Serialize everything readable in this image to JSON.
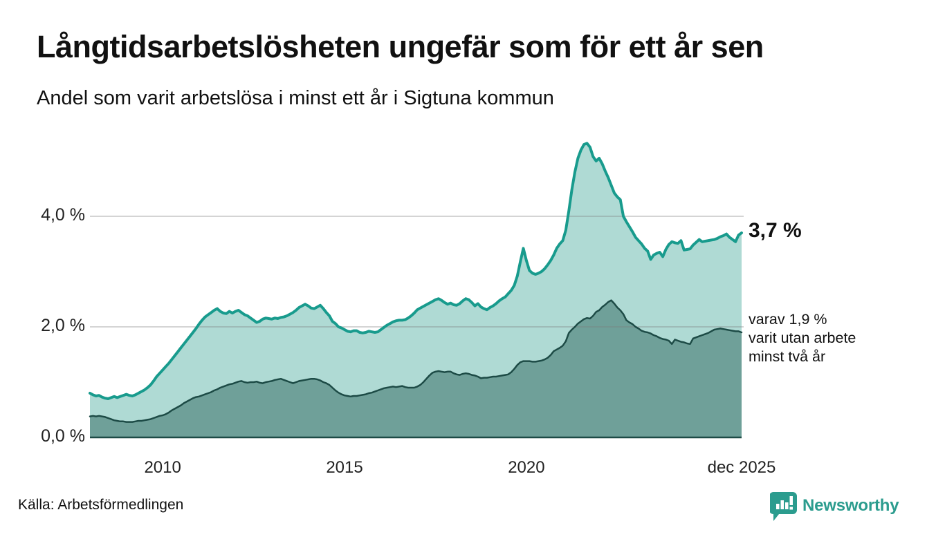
{
  "header": {
    "title": "Långtidsarbetslösheten ungefär som för ett år sen",
    "subtitle": "Andel som varit arbetslösa i minst ett år i Sigtuna kommun"
  },
  "chart_data": {
    "type": "area",
    "title": "Långtidsarbetslösheten ungefär som för ett år sen",
    "subtitle": "Andel som varit arbetslösa i minst ett år i Sigtuna kommun",
    "x_unit": "month",
    "x_range": [
      "2008-01",
      "2025-12"
    ],
    "ylim": [
      0,
      5.5
    ],
    "grid": "horizontal",
    "x_ticks": [
      {
        "label": "2010",
        "month_index": 24
      },
      {
        "label": "2015",
        "month_index": 84
      },
      {
        "label": "2020",
        "month_index": 144
      },
      {
        "label": "dec 2025",
        "month_index": 215
      }
    ],
    "y_ticks": [
      {
        "label": "4,0 %",
        "value": 4.0
      },
      {
        "label": "2,0 %",
        "value": 2.0
      },
      {
        "label": "0,0 %",
        "value": 0.0
      }
    ],
    "series": [
      {
        "id": "minst-ett-ar",
        "name": "Andel arbetslösa minst ett år",
        "color": "#189b8d",
        "fill": "#afdad4",
        "width": 4,
        "values": [
          0.8,
          0.77,
          0.75,
          0.76,
          0.73,
          0.71,
          0.7,
          0.72,
          0.74,
          0.72,
          0.74,
          0.76,
          0.78,
          0.76,
          0.75,
          0.77,
          0.8,
          0.83,
          0.86,
          0.9,
          0.95,
          1.02,
          1.1,
          1.16,
          1.22,
          1.28,
          1.34,
          1.41,
          1.48,
          1.55,
          1.62,
          1.69,
          1.76,
          1.83,
          1.9,
          1.97,
          2.05,
          2.12,
          2.18,
          2.22,
          2.26,
          2.3,
          2.33,
          2.28,
          2.25,
          2.24,
          2.28,
          2.25,
          2.28,
          2.3,
          2.26,
          2.22,
          2.2,
          2.16,
          2.12,
          2.08,
          2.1,
          2.14,
          2.16,
          2.15,
          2.14,
          2.16,
          2.15,
          2.17,
          2.18,
          2.2,
          2.23,
          2.26,
          2.3,
          2.35,
          2.38,
          2.41,
          2.38,
          2.34,
          2.33,
          2.36,
          2.39,
          2.33,
          2.26,
          2.2,
          2.1,
          2.06,
          2.0,
          1.98,
          1.95,
          1.92,
          1.91,
          1.93,
          1.93,
          1.9,
          1.89,
          1.9,
          1.92,
          1.91,
          1.9,
          1.91,
          1.95,
          1.99,
          2.03,
          2.06,
          2.09,
          2.11,
          2.12,
          2.12,
          2.13,
          2.16,
          2.2,
          2.25,
          2.31,
          2.34,
          2.37,
          2.4,
          2.43,
          2.46,
          2.49,
          2.51,
          2.48,
          2.44,
          2.41,
          2.43,
          2.4,
          2.39,
          2.42,
          2.47,
          2.51,
          2.49,
          2.44,
          2.38,
          2.42,
          2.36,
          2.33,
          2.31,
          2.35,
          2.38,
          2.42,
          2.47,
          2.51,
          2.54,
          2.6,
          2.66,
          2.75,
          2.92,
          3.18,
          3.42,
          3.2,
          3.02,
          2.97,
          2.95,
          2.97,
          3.0,
          3.05,
          3.12,
          3.2,
          3.3,
          3.42,
          3.5,
          3.56,
          3.75,
          4.1,
          4.48,
          4.8,
          5.05,
          5.2,
          5.3,
          5.32,
          5.25,
          5.08,
          5.0,
          5.05,
          4.95,
          4.82,
          4.7,
          4.56,
          4.42,
          4.35,
          4.3,
          4.0,
          3.9,
          3.81,
          3.72,
          3.62,
          3.56,
          3.5,
          3.42,
          3.37,
          3.22,
          3.3,
          3.33,
          3.35,
          3.27,
          3.4,
          3.49,
          3.54,
          3.52,
          3.51,
          3.56,
          3.39,
          3.4,
          3.41,
          3.48,
          3.53,
          3.58,
          3.54,
          3.55,
          3.56,
          3.57,
          3.58,
          3.6,
          3.63,
          3.65,
          3.68,
          3.62,
          3.58,
          3.54,
          3.66,
          3.7
        ]
      },
      {
        "id": "minst-tva-ar",
        "name": "Andel utan arbete minst två år",
        "color": "#1d4b46",
        "fill": "#6fa099",
        "width": 2.5,
        "values": [
          0.38,
          0.39,
          0.38,
          0.39,
          0.38,
          0.37,
          0.35,
          0.33,
          0.31,
          0.3,
          0.29,
          0.29,
          0.28,
          0.28,
          0.28,
          0.29,
          0.3,
          0.3,
          0.31,
          0.32,
          0.33,
          0.35,
          0.37,
          0.39,
          0.4,
          0.42,
          0.45,
          0.49,
          0.52,
          0.55,
          0.58,
          0.62,
          0.65,
          0.68,
          0.71,
          0.73,
          0.74,
          0.76,
          0.78,
          0.8,
          0.82,
          0.85,
          0.87,
          0.9,
          0.92,
          0.94,
          0.96,
          0.97,
          0.99,
          1.01,
          1.02,
          1.0,
          0.99,
          1.0,
          1.0,
          1.01,
          0.99,
          0.98,
          1.0,
          1.01,
          1.02,
          1.04,
          1.05,
          1.06,
          1.04,
          1.02,
          1.0,
          0.98,
          1.0,
          1.02,
          1.03,
          1.04,
          1.05,
          1.06,
          1.06,
          1.05,
          1.03,
          1.0,
          0.98,
          0.95,
          0.9,
          0.85,
          0.81,
          0.78,
          0.76,
          0.75,
          0.74,
          0.75,
          0.75,
          0.76,
          0.77,
          0.78,
          0.8,
          0.81,
          0.83,
          0.85,
          0.87,
          0.89,
          0.9,
          0.91,
          0.92,
          0.91,
          0.92,
          0.93,
          0.91,
          0.9,
          0.9,
          0.9,
          0.92,
          0.95,
          1.0,
          1.06,
          1.12,
          1.17,
          1.19,
          1.2,
          1.19,
          1.18,
          1.19,
          1.19,
          1.16,
          1.14,
          1.13,
          1.15,
          1.16,
          1.15,
          1.13,
          1.12,
          1.1,
          1.07,
          1.08,
          1.08,
          1.09,
          1.1,
          1.1,
          1.11,
          1.12,
          1.13,
          1.14,
          1.18,
          1.24,
          1.31,
          1.36,
          1.38,
          1.38,
          1.38,
          1.37,
          1.37,
          1.38,
          1.39,
          1.41,
          1.44,
          1.49,
          1.56,
          1.59,
          1.62,
          1.66,
          1.74,
          1.89,
          1.95,
          2.0,
          2.06,
          2.1,
          2.14,
          2.16,
          2.15,
          2.2,
          2.27,
          2.3,
          2.36,
          2.4,
          2.45,
          2.48,
          2.42,
          2.35,
          2.3,
          2.23,
          2.12,
          2.08,
          2.05,
          2.0,
          1.97,
          1.93,
          1.91,
          1.9,
          1.88,
          1.85,
          1.83,
          1.8,
          1.78,
          1.77,
          1.75,
          1.69,
          1.77,
          1.75,
          1.73,
          1.72,
          1.7,
          1.69,
          1.79,
          1.81,
          1.83,
          1.85,
          1.87,
          1.89,
          1.92,
          1.95,
          1.96,
          1.97,
          1.96,
          1.95,
          1.94,
          1.93,
          1.92,
          1.92,
          1.9
        ]
      }
    ],
    "annotations": {
      "last_value_label": "3,7 %",
      "secondary_line1": "varav 1,9 %",
      "secondary_line2": "varit utan arbete",
      "secondary_line3": "minst två år"
    }
  },
  "footer": {
    "source": "Källa: Arbetsförmedlingen",
    "logo_text": "Newsworthy"
  },
  "colors": {
    "accent_teal": "#189b8d",
    "light_fill": "#afdad4",
    "dark_fill": "#6fa099",
    "dark_line": "#1d4b46",
    "gridline": "#e0e0e0",
    "logo_teal": "#2b9c8e",
    "text": "#111111"
  }
}
